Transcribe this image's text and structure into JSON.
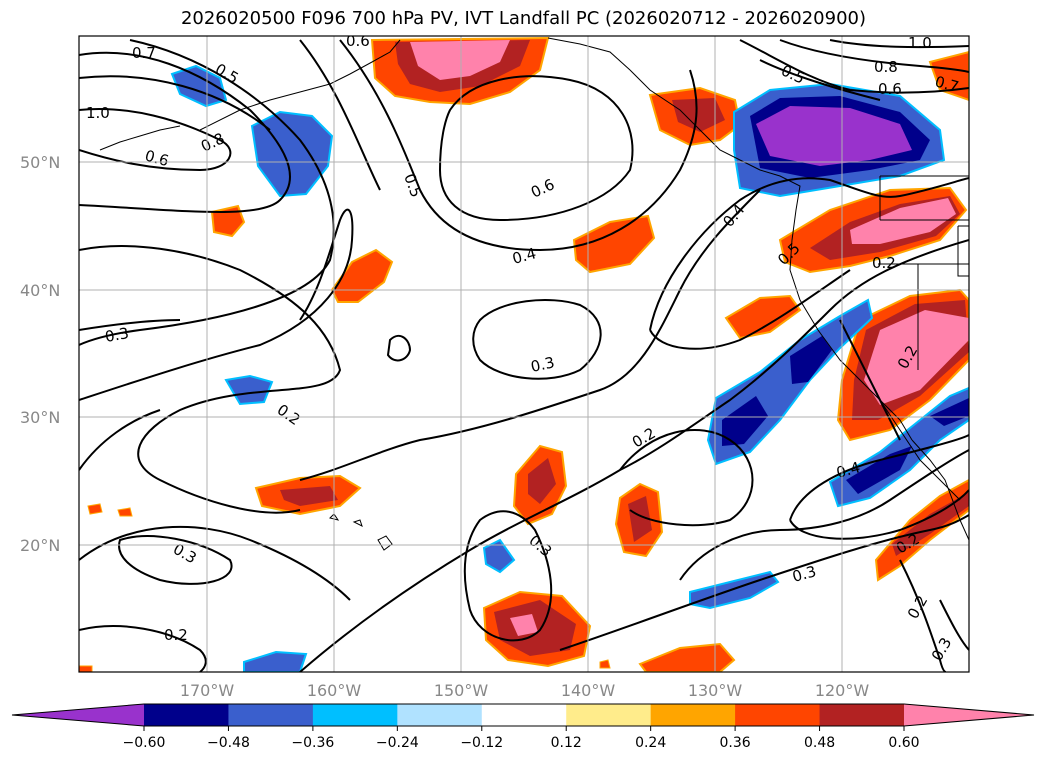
{
  "title": "2026020500 F096 700 hPa PV, IVT Landfall PC (2026020712 - 2026020900)",
  "map": {
    "lat_labels": [
      "50°N",
      "40°N",
      "30°N",
      "20°N"
    ],
    "lon_labels": [
      "170°W",
      "160°W",
      "150°W",
      "140°W",
      "130°W",
      "120°W"
    ],
    "contour_labels": [
      "0.7",
      "0.5",
      "1.0",
      "0.8",
      "0.6",
      "0.5",
      "0.6",
      "0.4",
      "0.3",
      "0.3",
      "0.2",
      "0.2",
      "0.3",
      "0.2",
      "0.4",
      "0.5",
      "0.3",
      "0.2",
      "0.2",
      "0.4",
      "0.3",
      "0.2",
      "0.2",
      "0.3",
      "1.0",
      "0.8",
      "0.6",
      "0.7",
      "0.5",
      "0.6"
    ]
  },
  "colorbar": {
    "ticks": [
      "−0.60",
      "−0.48",
      "−0.36",
      "−0.24",
      "−0.12",
      "0.12",
      "0.24",
      "0.36",
      "0.48",
      "0.60"
    ],
    "colors": [
      "#9932cc",
      "#00008b",
      "#3a5fcd",
      "#00bfff",
      "#b0e2ff",
      "#ffffff",
      "#ffec8b",
      "#ffa500",
      "#ff4500",
      "#b22222",
      "#ff82ab"
    ]
  }
}
